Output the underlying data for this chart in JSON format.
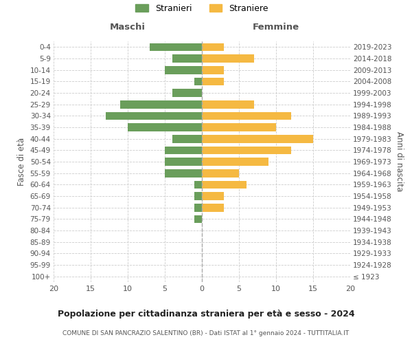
{
  "age_groups": [
    "100+",
    "95-99",
    "90-94",
    "85-89",
    "80-84",
    "75-79",
    "70-74",
    "65-69",
    "60-64",
    "55-59",
    "50-54",
    "45-49",
    "40-44",
    "35-39",
    "30-34",
    "25-29",
    "20-24",
    "15-19",
    "10-14",
    "5-9",
    "0-4"
  ],
  "birth_years": [
    "≤ 1923",
    "1924-1928",
    "1929-1933",
    "1934-1938",
    "1939-1943",
    "1944-1948",
    "1949-1953",
    "1954-1958",
    "1959-1963",
    "1964-1968",
    "1969-1973",
    "1974-1978",
    "1979-1983",
    "1984-1988",
    "1989-1993",
    "1994-1998",
    "1999-2003",
    "2004-2008",
    "2009-2013",
    "2014-2018",
    "2019-2023"
  ],
  "maschi": [
    0,
    0,
    0,
    0,
    0,
    1,
    1,
    1,
    1,
    5,
    5,
    5,
    4,
    10,
    13,
    11,
    4,
    1,
    5,
    4,
    7
  ],
  "femmine": [
    0,
    0,
    0,
    0,
    0,
    0,
    3,
    3,
    6,
    5,
    9,
    12,
    15,
    10,
    12,
    7,
    0,
    3,
    3,
    7,
    3
  ],
  "maschi_color": "#6a9e5b",
  "femmine_color": "#f5b942",
  "background_color": "#ffffff",
  "grid_color": "#cccccc",
  "title": "Popolazione per cittadinanza straniera per età e sesso - 2024",
  "subtitle": "COMUNE DI SAN PANCRAZIO SALENTINO (BR) - Dati ISTAT al 1° gennaio 2024 - TUTTITALIA.IT",
  "xlabel_left": "Maschi",
  "xlabel_right": "Femmine",
  "ylabel_left": "Fasce di età",
  "ylabel_right": "Anni di nascita",
  "legend_maschi": "Stranieri",
  "legend_femmine": "Straniere",
  "xlim": 20
}
